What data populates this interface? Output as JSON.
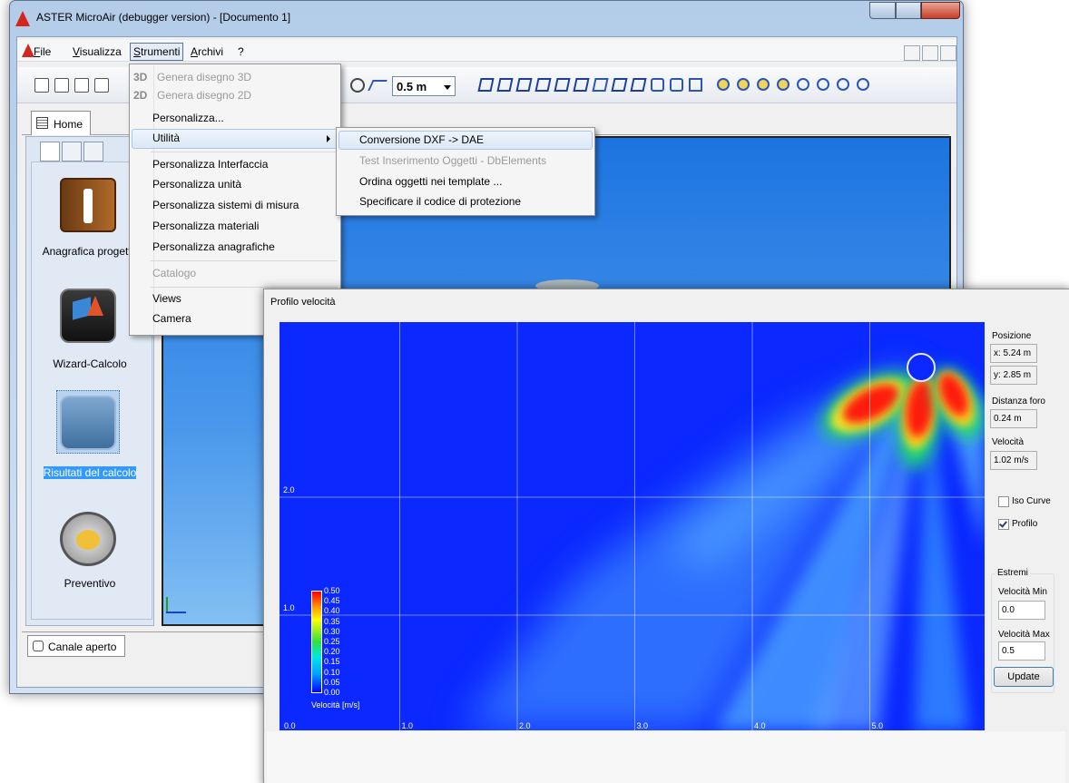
{
  "window": {
    "title": "ASTER MicroAir (debugger version) - [Documento 1]",
    "menu": [
      "File",
      "Visualizza",
      "Strumenti",
      "Archivi",
      "?"
    ],
    "scale": "0.5 m",
    "tab": "Home",
    "sidebar": [
      "Anagrafica progetto",
      "Wizard-Calcolo",
      "Risultati del calcolo",
      "Preventivo"
    ],
    "status_tab": "Canale aperto"
  },
  "menu_strumenti": [
    {
      "prefix": "3D",
      "label": "Genera disegno 3D",
      "disabled": true
    },
    {
      "prefix": "2D",
      "label": "Genera disegno 2D",
      "disabled": true
    },
    {
      "label": "Personalizza..."
    },
    {
      "label": "Utilità"
    },
    {
      "label": "Personalizza Interfaccia"
    },
    {
      "label": "Personalizza unità"
    },
    {
      "label": "Personalizza sistemi di misura"
    },
    {
      "label": "Personalizza materiali"
    },
    {
      "label": "Personalizza anagrafiche"
    },
    {
      "label": "Catalogo",
      "disabled": true
    },
    {
      "label": "Views"
    },
    {
      "label": "Camera"
    }
  ],
  "submenu_utilita": [
    {
      "label": "Conversione DXF -> DAE"
    },
    {
      "label": "Test Inserimento Oggetti - DbElements",
      "disabled": true
    },
    {
      "label": "Ordina oggetti nei template ..."
    },
    {
      "label": "Specificare il codice di protezione"
    }
  ],
  "dialog": {
    "title": "Profilo velocità",
    "plot": {
      "xticks": [
        "0.0",
        "1.0",
        "2.0",
        "3.0",
        "4.0",
        "5.0"
      ],
      "yticks": [
        "1.0",
        "2.0"
      ],
      "colorbar": {
        "title": "Velocità [m/s]",
        "labels": [
          "0.50",
          "0.45",
          "0.40",
          "0.35",
          "0.30",
          "0.25",
          "0.20",
          "0.15",
          "0.10",
          "0.05",
          "0.00"
        ]
      }
    },
    "panel": {
      "posizione": "Posizione",
      "x": "x: 5.24 m",
      "y": "y: 2.85 m",
      "distanza_label": "Distanza foro",
      "distanza": "0.24 m",
      "velocita_label": "Velocità",
      "velocita": "1.02 m/s",
      "iso_curve": {
        "label": "Iso Curve",
        "checked": false
      },
      "profilo": {
        "label": "Profilo",
        "checked": true
      },
      "estremi": "Estremi",
      "min_label": "Velocità Min",
      "min": "0.0",
      "max_label": "Velocità Max",
      "max": "0.5",
      "update": "Update"
    }
  }
}
